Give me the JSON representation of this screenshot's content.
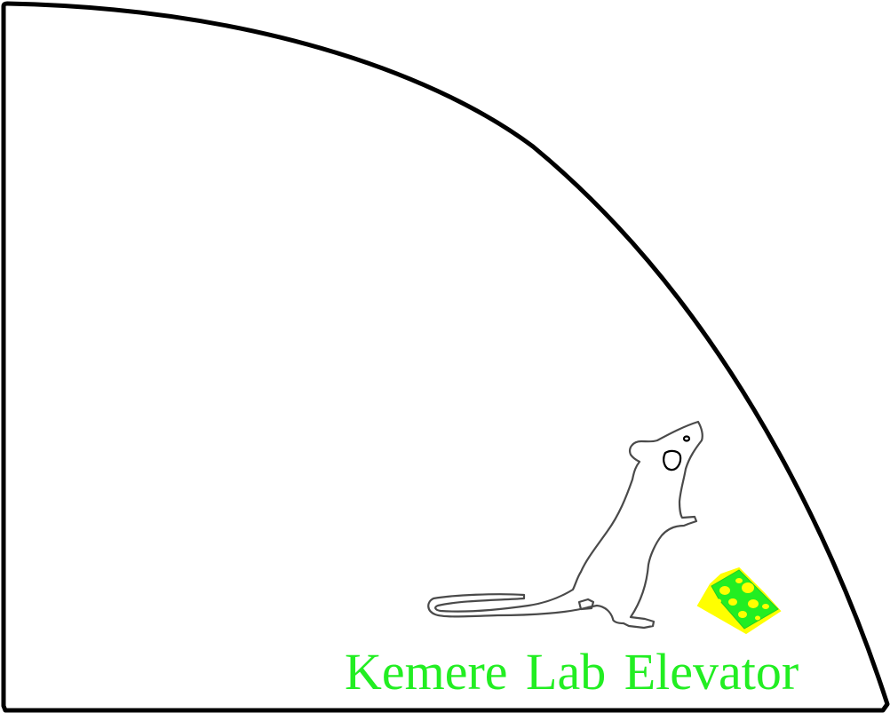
{
  "title": "Kemere Lab Elevator",
  "colors": {
    "outline": "#000000",
    "mouse_stroke": "#4a4a4a",
    "title": "#22ee22",
    "cheese_bright": "#ffff00",
    "cheese_green": "#22ee22"
  },
  "illustrations": {
    "shape": "quarter-circle-sector",
    "mouse": "mouse-outline-drawing",
    "cheese": "swiss-cheese-wedge"
  }
}
